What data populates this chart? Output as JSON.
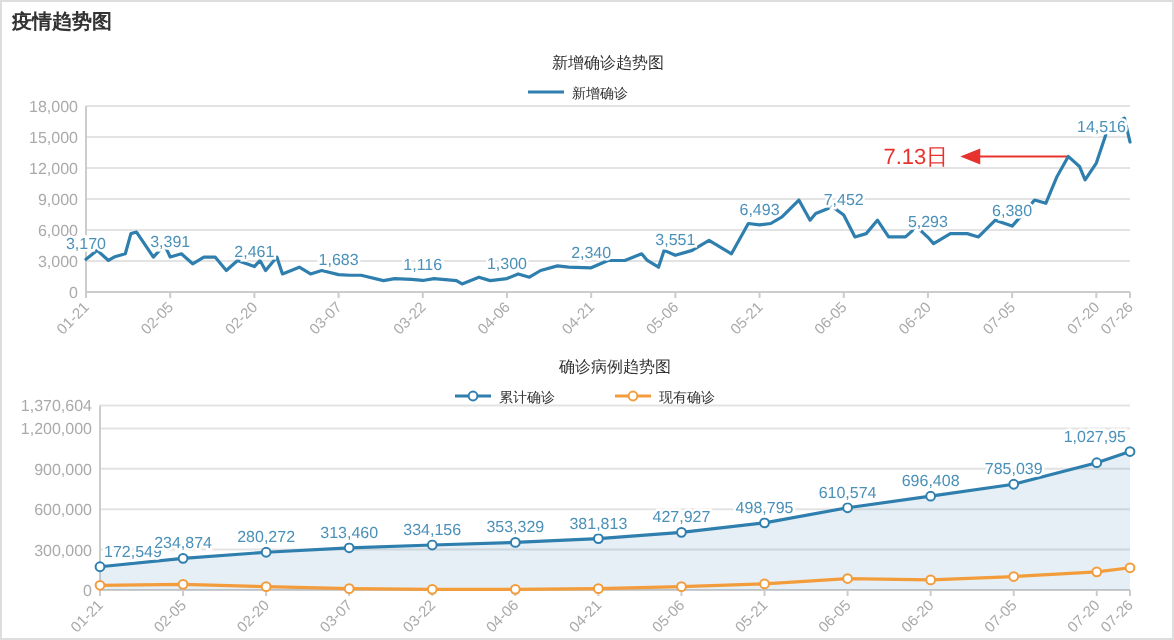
{
  "chart_data": [
    {
      "type": "line",
      "title": "新增确诊趋势图",
      "annotations": [
        "疫情趋势图",
        {
          "text": "7.13日",
          "x": "--07-15",
          "y": 13120
        }
      ],
      "legend": "top",
      "grid": "y",
      "line_style": "solid",
      "xlim": [
        "--01-21",
        "--07-26"
      ],
      "ylim": [
        0,
        18000
      ],
      "yticks": [
        0,
        {
          "value": 3000,
          "label": "3,000"
        },
        {
          "value": 6000,
          "label": "6,000"
        },
        {
          "value": 9000,
          "label": "9,000"
        },
        {
          "value": 12000,
          "label": "12,000"
        },
        {
          "value": 15000,
          "label": "15,000"
        },
        {
          "value": 18000,
          "label": "18,000"
        }
      ],
      "xticks": [
        {
          "value": "--01-21",
          "label": "01-21"
        },
        {
          "value": "--02-05",
          "label": "02-05"
        },
        {
          "value": "--02-20",
          "label": "02-20"
        },
        {
          "value": "--03-07",
          "label": "03-07"
        },
        {
          "value": "--03-22",
          "label": "03-22"
        },
        {
          "value": "--04-06",
          "label": "04-06"
        },
        {
          "value": "--04-21",
          "label": "04-21"
        },
        {
          "value": "--05-06",
          "label": "05-06"
        },
        {
          "value": "--05-21",
          "label": "05-21"
        },
        {
          "value": "--06-05",
          "label": "06-05"
        },
        {
          "value": "--06-20",
          "label": "06-20"
        },
        {
          "value": "--07-05",
          "label": "07-05"
        },
        {
          "value": "--07-20",
          "label": "07-20"
        },
        {
          "value": "--07-26",
          "label": "07-26"
        }
      ],
      "series": [
        {
          "name": "新增确诊",
          "color": "#2f7fae",
          "x": [
            "--01-21",
            "--01-23",
            "--01-25",
            "--01-26",
            "--01-28",
            "--01-29",
            "--01-30",
            "--01-31",
            "--02-02",
            "--02-04",
            "--02-05",
            "--02-07",
            "--02-09",
            "--02-11",
            "--02-13",
            "--02-15",
            "--02-17",
            "--02-20",
            "--02-21",
            "--02-22",
            "--02-24",
            "--02-25",
            "--02-28",
            "--03-02",
            "--03-04",
            "--03-07",
            "--03-09",
            "--03-11",
            "--03-15",
            "--03-17",
            "--03-20",
            "--03-22",
            "--03-24",
            "--03-28",
            "--03-29",
            "--04-01",
            "--04-03",
            "--04-06",
            "--04-08",
            "--04-10",
            "--04-12",
            "--04-15",
            "--04-17",
            "--04-21",
            "--04-24",
            "--04-27",
            "--04-30",
            "--05-01",
            "--05-03",
            "--05-04",
            "--05-06",
            "--05-09",
            "--05-12",
            "--05-16",
            "--05-19",
            "--05-21",
            "--05-23",
            "--05-25",
            "--05-28",
            "--05-30",
            "--05-31",
            "--06-03",
            "--06-05",
            "--06-07",
            "--06-09",
            "--06-11",
            "--06-13",
            "--06-16",
            "--06-18",
            "--06-20",
            "--06-21",
            "--06-24",
            "--06-27",
            "--06-29",
            "--07-02",
            "--07-05",
            "--07-07",
            "--07-09",
            "--07-11",
            "--07-13",
            "--07-15",
            "--07-17",
            "--07-18",
            "--07-20",
            "--07-22",
            "--07-25",
            "--07-26"
          ],
          "values": [
            3170,
            4030,
            3050,
            3380,
            3700,
            5650,
            5800,
            5000,
            3380,
            4550,
            3391,
            3700,
            2730,
            3380,
            3380,
            2080,
            3050,
            2461,
            3050,
            2080,
            3380,
            1750,
            2400,
            1750,
            2080,
            1683,
            1620,
            1620,
            1100,
            1300,
            1230,
            1116,
            1300,
            1100,
            780,
            1430,
            1100,
            1300,
            1750,
            1430,
            2080,
            2530,
            2400,
            2340,
            3050,
            3050,
            3700,
            3050,
            2400,
            4030,
            3551,
            4030,
            5000,
            3700,
            6630,
            6493,
            6630,
            7280,
            8900,
            6950,
            7600,
            8250,
            7452,
            5330,
            5650,
            6950,
            5330,
            5330,
            6300,
            5293,
            4680,
            5650,
            5650,
            5330,
            6950,
            6380,
            7600,
            8900,
            8580,
            11180,
            13120,
            12150,
            10850,
            12480,
            15720,
            16830,
            14516
          ],
          "value_labels": [
            "3,170",
            null,
            null,
            null,
            null,
            null,
            null,
            null,
            null,
            null,
            "3,391",
            null,
            null,
            null,
            null,
            null,
            null,
            "2,461",
            null,
            null,
            null,
            null,
            null,
            null,
            null,
            "1,683",
            null,
            null,
            null,
            null,
            null,
            "1,116",
            null,
            null,
            null,
            null,
            null,
            "1,300",
            null,
            null,
            null,
            null,
            null,
            "2,340",
            null,
            null,
            null,
            null,
            null,
            null,
            "3,551",
            null,
            null,
            null,
            null,
            "6,493",
            null,
            null,
            null,
            null,
            null,
            null,
            "7,452",
            null,
            null,
            null,
            null,
            null,
            null,
            "5,293",
            null,
            null,
            null,
            null,
            null,
            "6,380",
            null,
            null,
            null,
            null,
            null,
            null,
            null,
            null,
            null,
            null,
            "14,516"
          ]
        }
      ]
    },
    {
      "type": "line",
      "title": "确诊病例趋势图",
      "legend": "top",
      "grid": "y",
      "marker": "circle",
      "line_style": "solid",
      "xlim": [
        "--01-21",
        "--07-26"
      ],
      "ylim": [
        0,
        1370604
      ],
      "yticks": [
        0,
        {
          "value": 300000,
          "label": "300,000"
        },
        {
          "value": 600000,
          "label": "600,000"
        },
        {
          "value": 900000,
          "label": "900,000"
        },
        {
          "value": 1200000,
          "label": "1,200,000"
        },
        {
          "value": 1370604,
          "label": "1,370,604"
        }
      ],
      "xticks": [
        {
          "value": "--01-21",
          "label": "01-21"
        },
        {
          "value": "--02-05",
          "label": "02-05"
        },
        {
          "value": "--02-20",
          "label": "02-20"
        },
        {
          "value": "--03-07",
          "label": "03-07"
        },
        {
          "value": "--03-22",
          "label": "03-22"
        },
        {
          "value": "--04-06",
          "label": "04-06"
        },
        {
          "value": "--04-21",
          "label": "04-21"
        },
        {
          "value": "--05-06",
          "label": "05-06"
        },
        {
          "value": "--05-21",
          "label": "05-21"
        },
        {
          "value": "--06-05",
          "label": "06-05"
        },
        {
          "value": "--06-20",
          "label": "06-20"
        },
        {
          "value": "--07-05",
          "label": "07-05"
        },
        {
          "value": "--07-20",
          "label": "07-20"
        },
        {
          "value": "--07-26",
          "label": "07-26"
        }
      ],
      "x": [
        "--01-21",
        "--02-05",
        "--02-20",
        "--03-07",
        "--03-22",
        "--04-06",
        "--04-21",
        "--05-06",
        "--05-21",
        "--06-05",
        "--06-20",
        "--07-05",
        "--07-20",
        "--07-26"
      ],
      "series": [
        {
          "name": "累计确诊",
          "type": "area",
          "color": "#2f7fae",
          "values": [
            172549,
            234874,
            280272,
            313460,
            334156,
            353329,
            381813,
            427927,
            498795,
            610574,
            696408,
            785039,
            945000,
            1027950
          ],
          "value_labels": [
            "172,549",
            "234,874",
            "280,272",
            "313,460",
            "334,156",
            "353,329",
            "381,813",
            "427,927",
            "498,795",
            "610,574",
            "696,408",
            "785,039",
            null,
            "1,027,95"
          ]
        },
        {
          "name": "现有确诊",
          "type": "line",
          "color": "#f39c3c",
          "values": [
            35000,
            42000,
            25000,
            10000,
            5000,
            5000,
            10000,
            25000,
            45000,
            85000,
            75000,
            100000,
            135000,
            165000
          ]
        }
      ]
    }
  ]
}
